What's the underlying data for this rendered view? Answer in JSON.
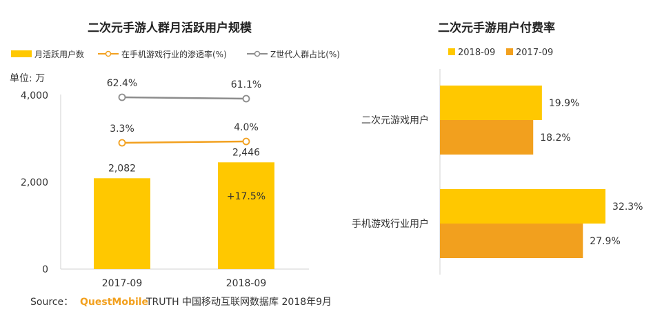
{
  "left": {
    "title": "二次元手游人群月活跃用户规模",
    "unit_label": "单位: 万",
    "legend": [
      {
        "label": "月活跃用户数",
        "color": "#FFC800"
      },
      {
        "label": "在手机游戏行业的渗透率(%)",
        "color": "#F2A01E"
      },
      {
        "label": "Z世代人群占比(%)",
        "color": "#8C8C8C"
      }
    ],
    "yticks": [
      "4,000",
      "2,000",
      "0"
    ],
    "growth_label": "+17.5%"
  },
  "right": {
    "title": "二次元手游用户付费率",
    "legend": [
      {
        "label": "2018-09",
        "color": "#FFC800"
      },
      {
        "label": "2017-09",
        "color": "#F2A01E"
      }
    ]
  },
  "source": {
    "prefix": "Source：",
    "brand": "QuestMobile",
    "text": "TRUTH 中国移动互联网数据库 2018年9月"
  },
  "chart_data": [
    {
      "type": "bar",
      "title": "二次元手游人群月活跃用户规模",
      "ylabel": "单位: 万",
      "ylim": [
        0,
        4000
      ],
      "categories": [
        "2017-09",
        "2018-09"
      ],
      "series": [
        {
          "name": "月活跃用户数",
          "type": "bar",
          "values": [
            2082,
            2446
          ],
          "labels": [
            "2,082",
            "2,446"
          ],
          "color": "#FFC800"
        },
        {
          "name": "在手机游戏行业的渗透率(%)",
          "type": "line",
          "values": [
            3.3,
            4.0
          ],
          "labels": [
            "3.3%",
            "4.0%"
          ],
          "color": "#F2A01E"
        },
        {
          "name": "Z世代人群占比(%)",
          "type": "line",
          "values": [
            62.4,
            61.1
          ],
          "labels": [
            "62.4%",
            "61.1%"
          ],
          "color": "#8C8C8C"
        }
      ],
      "annotation": "+17.5%"
    },
    {
      "type": "bar",
      "orientation": "horizontal",
      "title": "二次元手游用户付费率",
      "categories": [
        "二次元游戏用户",
        "手机游戏行业用户"
      ],
      "series": [
        {
          "name": "2018-09",
          "values": [
            19.9,
            32.3
          ],
          "labels": [
            "19.9%",
            "32.3%"
          ],
          "color": "#FFC800"
        },
        {
          "name": "2017-09",
          "values": [
            18.2,
            27.9
          ],
          "labels": [
            "18.2%",
            "27.9%"
          ],
          "color": "#F2A01E"
        }
      ]
    }
  ]
}
